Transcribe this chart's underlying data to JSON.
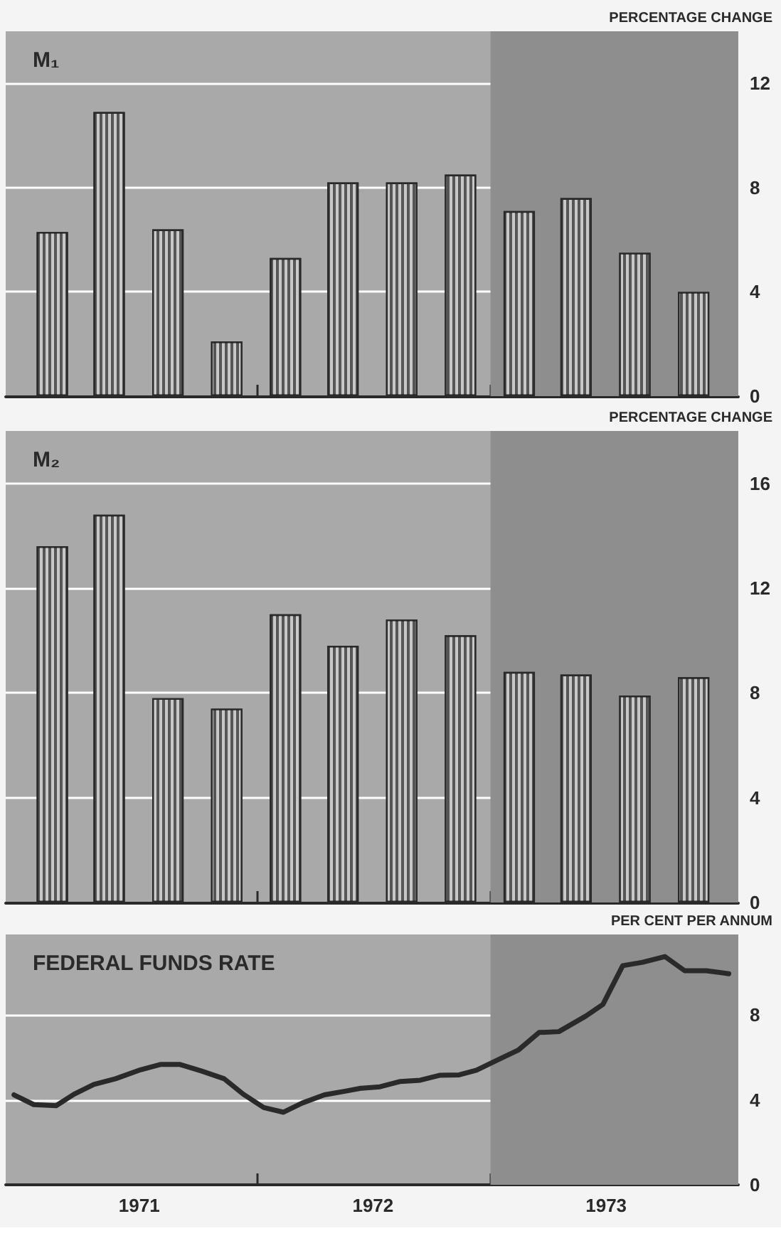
{
  "chart_data": [
    {
      "type": "bar",
      "title": "M₁",
      "ylabel": "PERCENTAGE CHANGE",
      "x": [
        "1971-02-15",
        "1971-05-15",
        "1971-08-15",
        "1971-11-15",
        "1972-02-15",
        "1972-05-15",
        "1972-08-15",
        "1972-11-15",
        "1973-02-15",
        "1973-05-15",
        "1973-08-15",
        "1973-11-15"
      ],
      "values": [
        6.3,
        10.9,
        6.4,
        2.1,
        5.3,
        8.2,
        8.2,
        8.5,
        7.1,
        7.6,
        5.5,
        4.0
      ],
      "color": "#555555",
      "xlim": [
        "1970-12-04",
        "1974-01-24"
      ],
      "xticks": [
        {
          "value": "1972-01-01",
          "label": null
        },
        {
          "value": "1973-01-01",
          "label": null
        }
      ],
      "ylim": [
        0,
        14
      ],
      "yticks": [
        0,
        4,
        8,
        12
      ],
      "grid": "y",
      "tick_labels": "y",
      "bands": [
        {
          "axis": "x",
          "from": "1973-01-01",
          "to": "1974-01-24",
          "color": "#8e8e8e"
        }
      ]
    },
    {
      "type": "bar",
      "title": "M₂",
      "ylabel": "PERCENTAGE CHANGE",
      "x": [
        "1971-02-15",
        "1971-05-15",
        "1971-08-15",
        "1971-11-15",
        "1972-02-15",
        "1972-05-15",
        "1972-08-15",
        "1972-11-15",
        "1973-02-15",
        "1973-05-15",
        "1973-08-15",
        "1973-11-15"
      ],
      "values": [
        13.6,
        14.8,
        7.8,
        7.4,
        11.0,
        9.8,
        10.8,
        10.2,
        8.8,
        8.7,
        7.9,
        8.6
      ],
      "color": "#555555",
      "xlim": [
        "1970-12-04",
        "1974-01-24"
      ],
      "xticks": [
        {
          "value": "1972-01-01",
          "label": null
        },
        {
          "value": "1973-01-01",
          "label": null
        }
      ],
      "ylim": [
        0,
        18
      ],
      "yticks": [
        0,
        4,
        8,
        12,
        16
      ],
      "grid": "y",
      "tick_labels": "y",
      "bands": [
        {
          "axis": "x",
          "from": "1973-01-01",
          "to": "1974-01-24",
          "color": "#8e8e8e"
        }
      ]
    },
    {
      "type": "line",
      "title": "FEDERAL FUNDS RATE",
      "ylabel": "PER CENT PER ANNUM",
      "x": [
        "1970-12-17",
        "1971-01-17",
        "1971-02-21",
        "1971-03-21",
        "1971-04-21",
        "1971-05-25",
        "1971-07-03",
        "1971-08-03",
        "1971-09-03",
        "1971-10-07",
        "1971-11-11",
        "1971-12-11",
        "1972-01-12",
        "1972-02-12",
        "1972-03-12",
        "1972-04-16",
        "1972-05-20",
        "1972-06-12",
        "1972-07-12",
        "1972-08-13",
        "1972-09-13",
        "1972-10-13",
        "1972-11-13",
        "1972-12-10",
        "1973-01-14",
        "1973-02-14",
        "1973-03-18",
        "1973-04-18",
        "1973-05-30",
        "1973-06-26",
        "1973-07-27",
        "1973-08-27",
        "1973-10-01",
        "1973-11-01",
        "1973-12-05",
        "1974-01-09"
      ],
      "values": [
        4.24,
        3.78,
        3.73,
        4.27,
        4.73,
        5.0,
        5.42,
        5.67,
        5.67,
        5.36,
        5.0,
        4.27,
        3.64,
        3.42,
        3.85,
        4.24,
        4.42,
        4.55,
        4.62,
        4.87,
        4.93,
        5.16,
        5.18,
        5.4,
        5.91,
        6.36,
        7.18,
        7.22,
        7.95,
        8.5,
        10.33,
        10.49,
        10.76,
        10.09,
        10.09,
        9.95
      ],
      "color": "#2a2a2a",
      "marker": "none",
      "line_style": "solid",
      "xlim": [
        "1970-12-04",
        "1974-01-24"
      ],
      "xticks": [
        {
          "value": "1971-07-01",
          "label": "1971"
        },
        {
          "value": "1972-01-01",
          "label": null
        },
        {
          "value": "1972-07-01",
          "label": "1972"
        },
        {
          "value": "1973-01-01",
          "label": null
        },
        {
          "value": "1973-07-01",
          "label": "1973"
        }
      ],
      "ylim": [
        0,
        11.8
      ],
      "yticks": [
        0,
        4,
        8
      ],
      "grid": "y",
      "bands": [
        {
          "axis": "x",
          "from": "1973-01-01",
          "to": "1974-01-24",
          "color": "#8e8e8e"
        }
      ]
    }
  ]
}
